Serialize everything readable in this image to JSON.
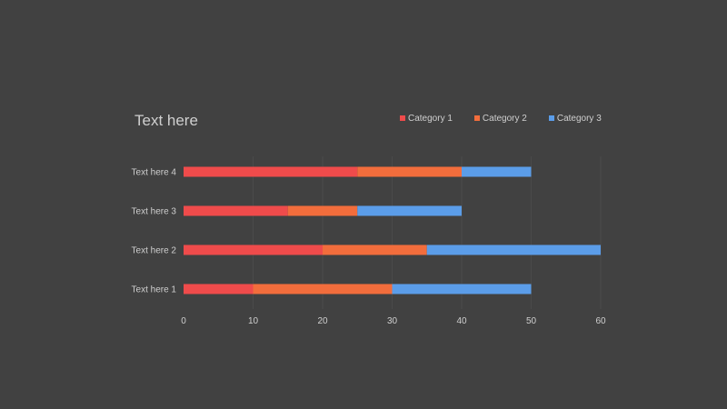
{
  "colors": {
    "background": "#414141",
    "text": "#cfcfcf",
    "gridline": "#4a4a4a"
  },
  "chart_data": {
    "type": "bar",
    "orientation": "horizontal",
    "stacked": true,
    "title": "Text here",
    "categories": [
      "Text here 1",
      "Text here 2",
      "Text here 3",
      "Text here 4"
    ],
    "series": [
      {
        "name": "Category 1",
        "color": "#ef4b4b",
        "values": [
          10,
          20,
          15,
          25
        ]
      },
      {
        "name": "Category 2",
        "color": "#f26d3c",
        "values": [
          20,
          15,
          10,
          15
        ]
      },
      {
        "name": "Category 3",
        "color": "#5b9de9",
        "values": [
          20,
          25,
          15,
          10
        ]
      }
    ],
    "xlim": [
      0,
      60
    ],
    "xticks": [
      0,
      10,
      20,
      30,
      40,
      50,
      60
    ],
    "grid": true,
    "legend_position": "top-right"
  }
}
